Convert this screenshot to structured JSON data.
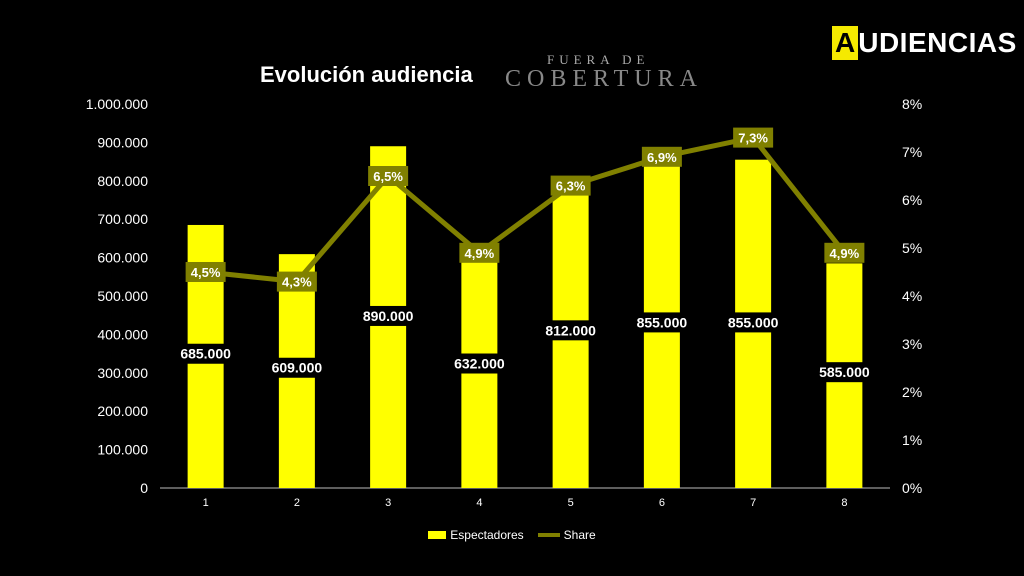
{
  "header": {
    "title": "Evolución audiencia",
    "brand_line1": "FUERA DE",
    "brand_line2": "COBERTURA",
    "logo_first": "A",
    "logo_rest": "UDIENCIAS"
  },
  "chart_data": {
    "type": "bar",
    "title": "Evolución audiencia",
    "categories": [
      "1",
      "2",
      "3",
      "4",
      "5",
      "6",
      "7",
      "8"
    ],
    "series": [
      {
        "name": "Espectadores",
        "type": "bar",
        "axis": "left",
        "values": [
          685000,
          609000,
          890000,
          632000,
          812000,
          855000,
          855000,
          585000
        ],
        "labels": [
          "685.000",
          "609.000",
          "890.000",
          "632.000",
          "812.000",
          "855.000",
          "855.000",
          "585.000"
        ]
      },
      {
        "name": "Share",
        "type": "line",
        "axis": "right",
        "values": [
          4.5,
          4.3,
          6.5,
          4.9,
          6.3,
          6.9,
          7.3,
          4.9
        ],
        "labels": [
          "4,5%",
          "4,3%",
          "6,5%",
          "4,9%",
          "6,3%",
          "6,9%",
          "7,3%",
          "4,9%"
        ]
      }
    ],
    "y_left": {
      "ylim": [
        0,
        1000000
      ],
      "ticks": [
        "0",
        "100.000",
        "200.000",
        "300.000",
        "400.000",
        "500.000",
        "600.000",
        "700.000",
        "800.000",
        "900.000",
        "1.000.000"
      ]
    },
    "y_right": {
      "ylim": [
        0,
        8
      ],
      "ticks": [
        "0%",
        "1%",
        "2%",
        "3%",
        "4%",
        "5%",
        "6%",
        "7%",
        "8%"
      ]
    },
    "grid": false,
    "legend": "bottom",
    "colors": {
      "bar": "#ffff00",
      "line": "#808000",
      "label_bg": "#808000",
      "background": "#000000"
    }
  }
}
